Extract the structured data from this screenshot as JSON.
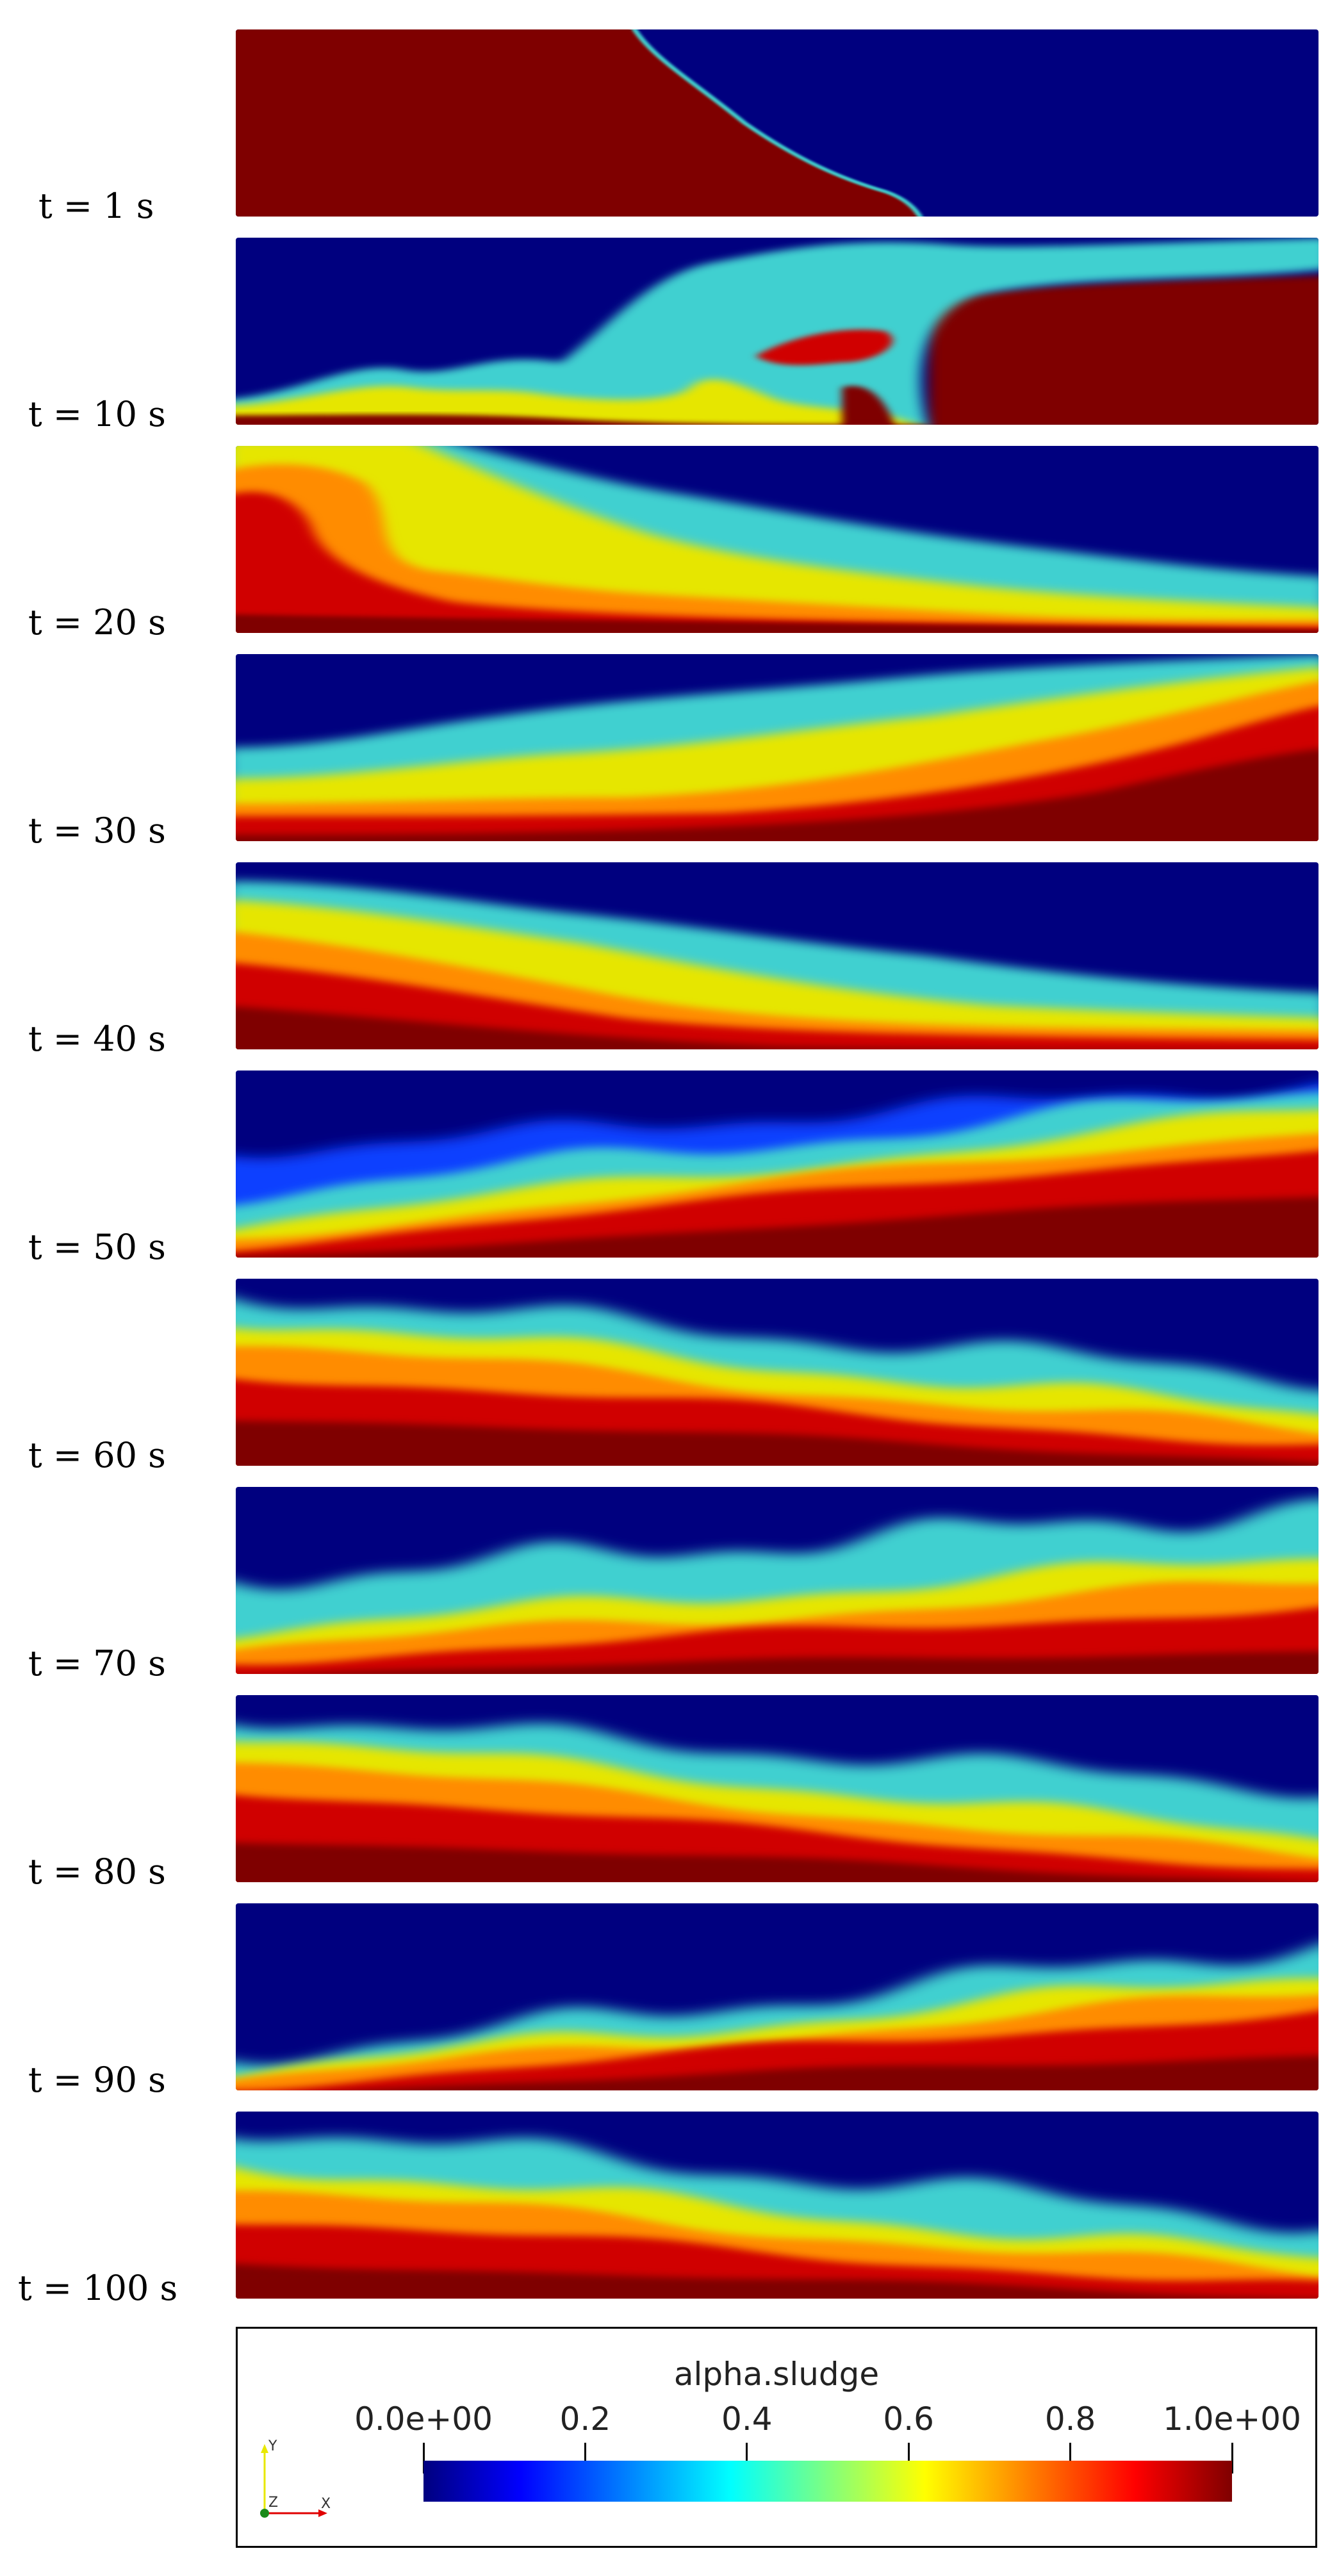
{
  "frames": [
    {
      "label": "t = 1 s"
    },
    {
      "label": "t = 10 s"
    },
    {
      "label": "t = 20 s"
    },
    {
      "label": "t = 30 s"
    },
    {
      "label": "t = 40 s"
    },
    {
      "label": "t = 50 s"
    },
    {
      "label": "t = 60 s"
    },
    {
      "label": "t = 70 s"
    },
    {
      "label": "t = 80 s"
    },
    {
      "label": "t = 90 s"
    },
    {
      "label": "t = 100 s"
    }
  ],
  "legend": {
    "title": "alpha.sludge",
    "ticks": [
      "0.0e+00",
      "0.2",
      "0.4",
      "0.6",
      "0.8",
      "1.0e+00"
    ],
    "range": [
      0,
      1
    ],
    "colormap": "jet"
  },
  "axes": {
    "y": "Y",
    "z": "Z",
    "x": "X"
  },
  "colors": {
    "dark_red": "#7f0000",
    "red": "#d00000",
    "orange": "#ff8c00",
    "yellow": "#e6e600",
    "green": "#7fe07f",
    "cyan": "#40d0d0",
    "blue": "#1040ff",
    "dark_blue": "#00007f"
  }
}
